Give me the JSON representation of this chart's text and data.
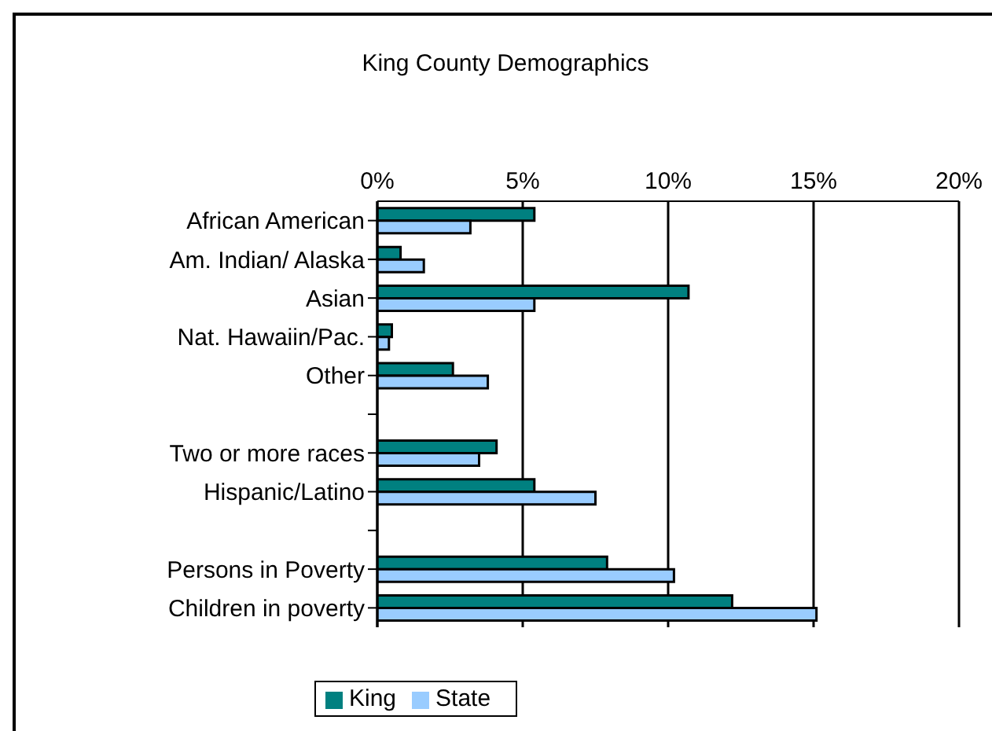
{
  "chart_data": {
    "type": "bar",
    "title": "King County Demographics",
    "orientation": "horizontal",
    "categories": [
      "African American",
      "Am. Indian/ Alaska",
      "Asian",
      "Nat. Hawaiin/Pac.",
      "Other",
      null,
      "Two or more races",
      "Hispanic/Latino",
      null,
      "Persons in Poverty",
      "Children in poverty"
    ],
    "series": [
      {
        "name": "King",
        "color": "#008080",
        "values": [
          5.4,
          0.8,
          10.7,
          0.5,
          2.6,
          null,
          4.1,
          5.4,
          null,
          7.9,
          12.2
        ]
      },
      {
        "name": "State",
        "color": "#99ccff",
        "values": [
          3.2,
          1.6,
          5.4,
          0.4,
          3.8,
          null,
          3.5,
          7.5,
          null,
          10.2,
          15.1
        ]
      }
    ],
    "xlim": [
      0,
      20
    ],
    "xticks": [
      {
        "value": 0,
        "label": "0%"
      },
      {
        "value": 5,
        "label": "5%"
      },
      {
        "value": 10,
        "label": "10%"
      },
      {
        "value": 15,
        "label": "15%"
      },
      {
        "value": 20,
        "label": "20%"
      }
    ],
    "grid": "x",
    "legend": "bottom"
  }
}
